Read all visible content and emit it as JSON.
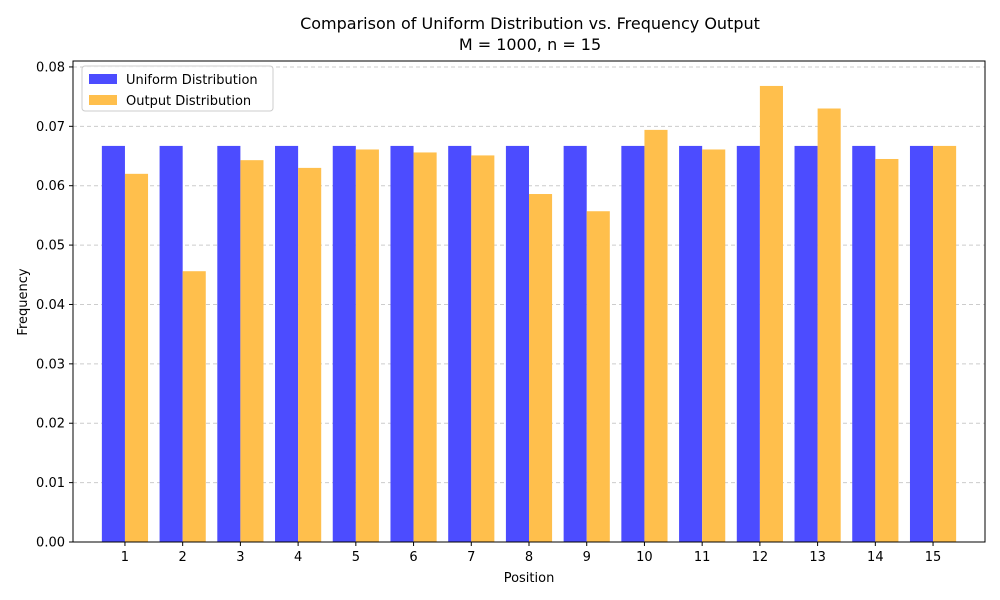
{
  "chart_data": {
    "type": "bar",
    "title": "Comparison of Uniform Distribution vs. Frequency Output",
    "subtitle": "M = 1000, n = 15",
    "xlabel": "Position",
    "ylabel": "Frequency",
    "categories": [
      "1",
      "2",
      "3",
      "4",
      "5",
      "6",
      "7",
      "8",
      "9",
      "10",
      "11",
      "12",
      "13",
      "14",
      "15"
    ],
    "series": [
      {
        "name": "Uniform Distribution",
        "color": "#4c4cff",
        "values": [
          0.0667,
          0.0667,
          0.0667,
          0.0667,
          0.0667,
          0.0667,
          0.0667,
          0.0667,
          0.0667,
          0.0667,
          0.0667,
          0.0667,
          0.0667,
          0.0667,
          0.0667
        ]
      },
      {
        "name": "Output Distribution",
        "color": "#ffbf4c",
        "values": [
          0.062,
          0.0456,
          0.0643,
          0.063,
          0.0661,
          0.0656,
          0.0651,
          0.0586,
          0.0557,
          0.0694,
          0.0661,
          0.0768,
          0.073,
          0.0645,
          0.0667
        ]
      }
    ],
    "ylim": [
      0,
      0.081
    ],
    "yticks": [
      "0.00",
      "0.01",
      "0.02",
      "0.03",
      "0.04",
      "0.05",
      "0.06",
      "0.07",
      "0.08"
    ],
    "ytick_values": [
      0,
      0.01,
      0.02,
      0.03,
      0.04,
      0.05,
      0.06,
      0.07,
      0.08
    ],
    "grid": "horizontal-dashed",
    "legend_position": "top-left"
  }
}
